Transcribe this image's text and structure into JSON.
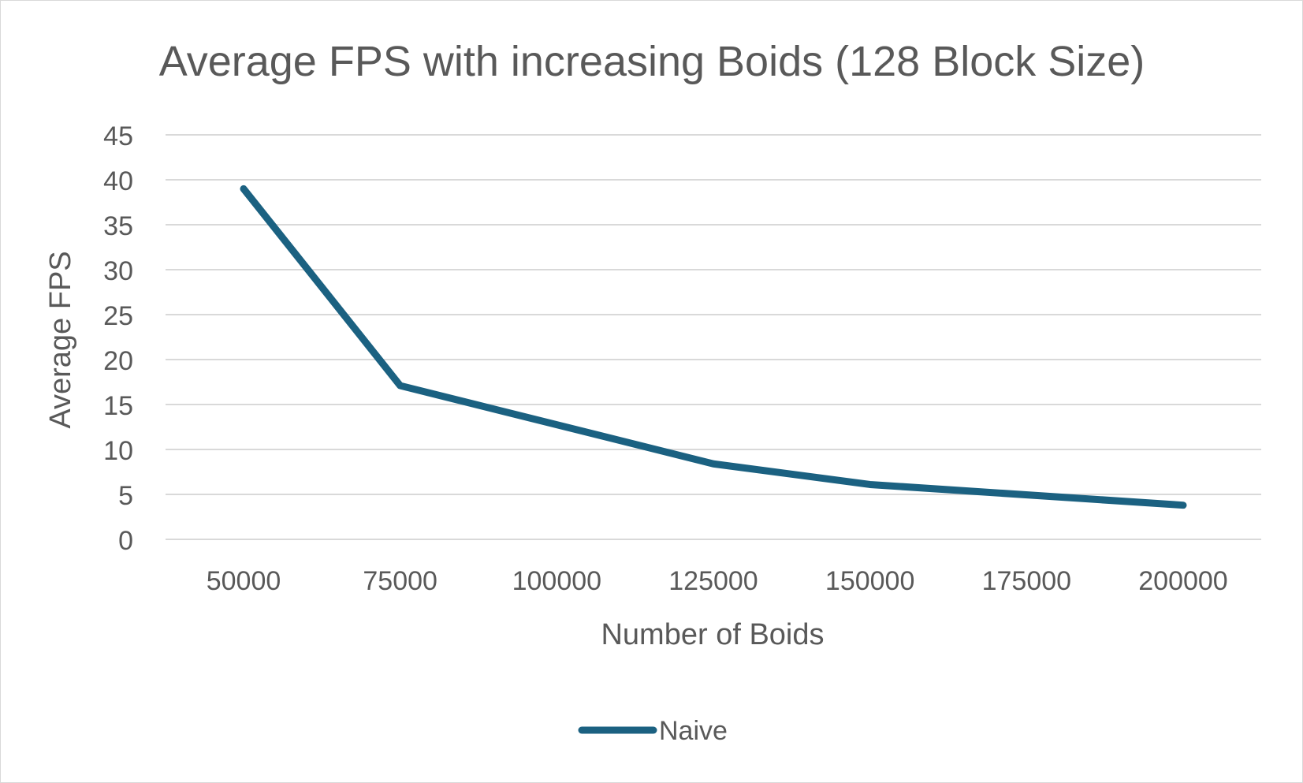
{
  "chart_data": {
    "type": "line",
    "title": "Average FPS with increasing Boids (128 Block Size)",
    "xlabel": "Number of Boids",
    "ylabel": "Average FPS",
    "categories": [
      "50000",
      "75000",
      "100000",
      "125000",
      "150000",
      "175000",
      "200000"
    ],
    "x": [
      50000,
      75000,
      125000,
      150000,
      200000
    ],
    "series": [
      {
        "name": "Naive",
        "x": [
          50000,
          75000,
          125000,
          150000,
          200000
        ],
        "values": [
          39,
          17.1,
          8.4,
          6.1,
          3.8
        ],
        "color": "#1b6181"
      }
    ],
    "ylim": [
      0,
      45
    ],
    "yticks": [
      "0",
      "5",
      "10",
      "15",
      "20",
      "25",
      "30",
      "35",
      "40",
      "45"
    ],
    "grid": true,
    "legend_position": "bottom",
    "colors": {
      "text": "#595959",
      "grid": "#d9d9d9",
      "border": "#d9d9d9"
    }
  }
}
